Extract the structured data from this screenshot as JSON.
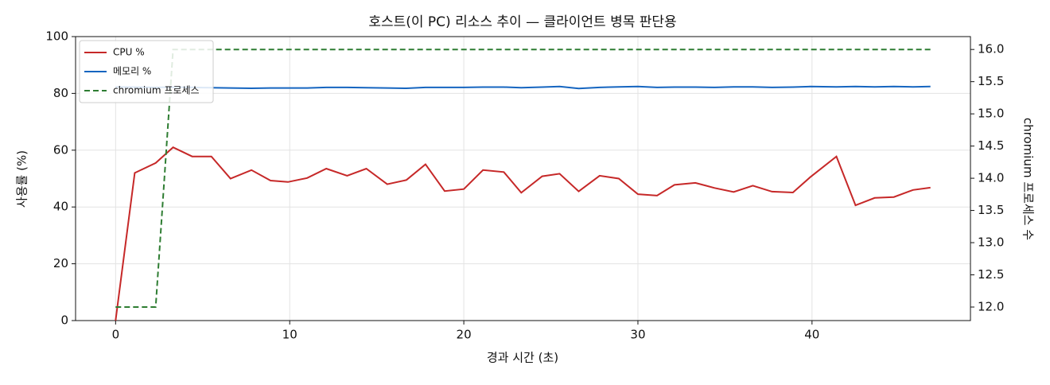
{
  "chart_data": {
    "type": "line",
    "title": "호스트(이 PC) 리소스 추이 — 클라이언트 병목 판단용",
    "x_label": "경과 시간 (초)",
    "y_label": "사용률 (%)",
    "y2_label": "chromium 프로세스 수",
    "x": [
      0,
      1.1,
      2.3,
      3.3,
      4.4,
      5.5,
      6.6,
      7.8,
      8.9,
      9.9,
      11.0,
      12.1,
      13.3,
      14.4,
      15.6,
      16.7,
      17.8,
      18.9,
      20.0,
      21.1,
      22.3,
      23.3,
      24.5,
      25.5,
      26.6,
      27.8,
      28.9,
      30.0,
      31.1,
      32.1,
      33.3,
      34.4,
      35.5,
      36.6,
      37.7,
      38.9,
      39.9,
      41.4,
      42.5,
      43.6,
      44.7,
      45.8,
      46.8
    ],
    "series": [
      {
        "name": "CPU %",
        "color": "#c62828",
        "axis": "y",
        "dash": false,
        "values": [
          0,
          52,
          55.5,
          61,
          57.8,
          57.8,
          50,
          53,
          49.3,
          48.8,
          50.2,
          53.5,
          51,
          53.5,
          48,
          49.5,
          55,
          45.6,
          46.3,
          53,
          52.3,
          45,
          50.8,
          51.7,
          45.5,
          51,
          50,
          44.5,
          44,
          47.8,
          48.5,
          46.7,
          45.3,
          47.5,
          45.4,
          45.1,
          50.5,
          57.8,
          40.6,
          43.2,
          43.5,
          46,
          46.8
        ]
      },
      {
        "name": "메모리 %",
        "color": "#1565c0",
        "axis": "y",
        "dash": false,
        "values": [
          82.3,
          82.2,
          82.1,
          82.2,
          82.1,
          82.0,
          81.9,
          81.8,
          81.9,
          81.9,
          81.9,
          82.1,
          82.1,
          82.0,
          81.9,
          81.8,
          82.1,
          82.1,
          82.1,
          82.2,
          82.2,
          82.0,
          82.2,
          82.4,
          81.7,
          82.1,
          82.3,
          82.4,
          82.1,
          82.2,
          82.2,
          82.1,
          82.3,
          82.3,
          82.1,
          82.2,
          82.4,
          82.3,
          82.4,
          82.3,
          82.4,
          82.3,
          82.4
        ]
      },
      {
        "name": "chromium 프로세스",
        "color": "#2e7d32",
        "axis": "y2",
        "dash": true,
        "values": [
          12,
          12,
          12,
          16,
          16,
          16,
          16,
          16,
          16,
          16,
          16,
          16,
          16,
          16,
          16,
          16,
          16,
          16,
          16,
          16,
          16,
          16,
          16,
          16,
          16,
          16,
          16,
          16,
          16,
          16,
          16,
          16,
          16,
          16,
          16,
          16,
          16,
          16,
          16,
          16,
          16,
          16,
          16
        ]
      }
    ],
    "xlim": [
      -2.3,
      49.1
    ],
    "xticks": [
      0,
      10,
      20,
      30,
      40
    ],
    "ylim": [
      0,
      100
    ],
    "yticks": [
      0,
      20,
      40,
      60,
      80,
      100
    ],
    "y2lim": [
      11.79,
      16.2
    ],
    "y2ticks": [
      {
        "value": 12,
        "label": "12.0"
      },
      {
        "value": 12.5,
        "label": "12.5"
      },
      {
        "value": 13,
        "label": "13.0"
      },
      {
        "value": 13.5,
        "label": "13.5"
      },
      {
        "value": 14,
        "label": "14.0"
      },
      {
        "value": 14.5,
        "label": "14.5"
      },
      {
        "value": 15,
        "label": "15.0"
      },
      {
        "value": 15.5,
        "label": "15.5"
      },
      {
        "value": 16,
        "label": "16.0"
      }
    ],
    "grid": true,
    "legend": "upper-left"
  }
}
